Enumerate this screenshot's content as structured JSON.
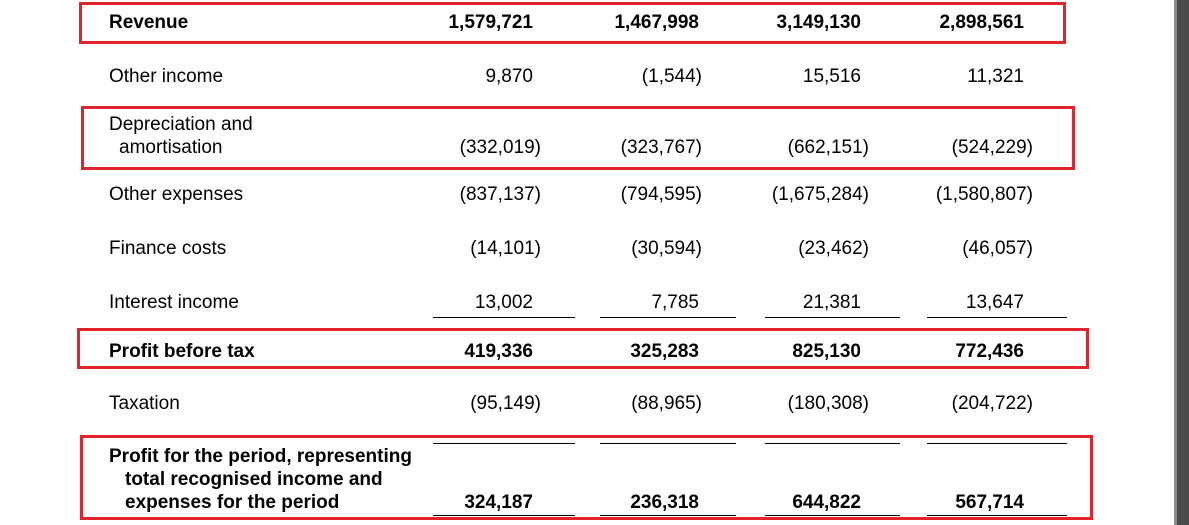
{
  "rows": {
    "revenue": {
      "label": "Revenue",
      "v1": "1,579,721",
      "v2": "1,467,998",
      "v3": "3,149,130",
      "v4": "2,898,561"
    },
    "other_income": {
      "label": "Other income",
      "v1": "9,870",
      "v2": "(1,544)",
      "v3": "15,516",
      "v4": "11,321"
    },
    "depreciation": {
      "label_line1": "Depreciation and",
      "label_line2": "amortisation",
      "v1": "(332,019)",
      "v2": "(323,767)",
      "v3": "(662,151)",
      "v4": "(524,229)"
    },
    "other_expenses": {
      "label": "Other expenses",
      "v1": "(837,137)",
      "v2": "(794,595)",
      "v3": "(1,675,284)",
      "v4": "(1,580,807)"
    },
    "finance_costs": {
      "label": "Finance costs",
      "v1": "(14,101)",
      "v2": "(30,594)",
      "v3": "(23,462)",
      "v4": "(46,057)"
    },
    "interest_income": {
      "label": "Interest income",
      "v1": "13,002",
      "v2": "7,785",
      "v3": "21,381",
      "v4": "13,647"
    },
    "profit_before_tax": {
      "label": "Profit before tax",
      "v1": "419,336",
      "v2": "325,283",
      "v3": "825,130",
      "v4": "772,436"
    },
    "taxation": {
      "label": "Taxation",
      "v1": "(95,149)",
      "v2": "(88,965)",
      "v3": "(180,308)",
      "v4": "(204,722)"
    },
    "profit_for_period": {
      "label_line1": "Profit for the period, representing",
      "label_line2": "total recognised income and",
      "label_line3": "expenses for the period",
      "v1": "324,187",
      "v2": "236,318",
      "v3": "644,822",
      "v4": "567,714"
    }
  },
  "colors": {
    "highlight": "#e3232c",
    "text": "#000000",
    "background": "#ffffff"
  }
}
